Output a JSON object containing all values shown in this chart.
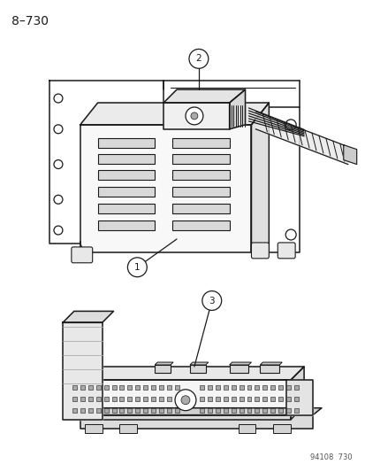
{
  "title": "8–730",
  "watermark": "94108  730",
  "background_color": "#ffffff",
  "line_color": "#1a1a1a",
  "figsize": [
    4.14,
    5.33
  ],
  "dpi": 100
}
